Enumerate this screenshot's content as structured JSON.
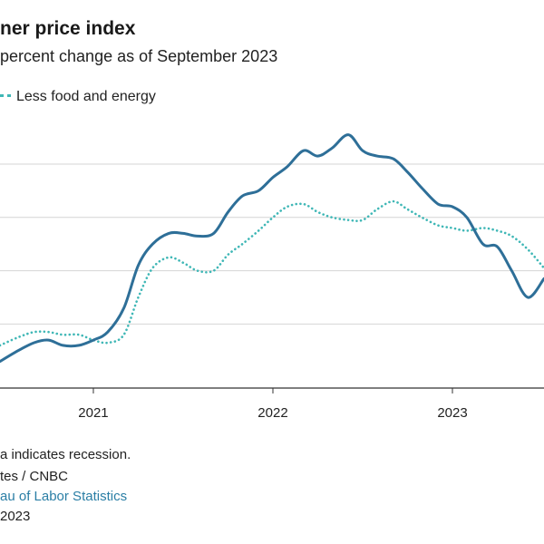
{
  "header": {
    "title": "ner price index",
    "subtitle": "percent change as of September 2023"
  },
  "legend": {
    "core_label": "Less food and energy"
  },
  "footer": {
    "recession_note": "a indicates recession.",
    "credit": "tes / CNBC",
    "source": "au of Labor Statistics",
    "date": "2023"
  },
  "colors": {
    "headline": "#2e6f98",
    "core": "#3fb7b6",
    "grid": "#d4d4d4",
    "axis": "#333333"
  },
  "chart_data": {
    "type": "line",
    "x_unit": "year",
    "xlim": [
      2020.48,
      2023.51
    ],
    "ylim": [
      -0.4,
      9.8
    ],
    "gridlines": [
      2,
      4,
      6,
      8
    ],
    "x_ticks": [
      {
        "value": 2021,
        "label": "2021"
      },
      {
        "value": 2022,
        "label": "2022"
      },
      {
        "value": 2023,
        "label": "2023"
      }
    ],
    "series": [
      {
        "key": "headline",
        "style": "solid",
        "x": [
          2020.48,
          2020.58,
          2020.67,
          2020.75,
          2020.83,
          2020.92,
          2021.0,
          2021.08,
          2021.17,
          2021.25,
          2021.33,
          2021.42,
          2021.5,
          2021.58,
          2021.67,
          2021.75,
          2021.83,
          2021.92,
          2022.0,
          2022.08,
          2022.17,
          2022.25,
          2022.33,
          2022.42,
          2022.5,
          2022.58,
          2022.67,
          2022.75,
          2022.83,
          2022.92,
          2023.0,
          2023.08,
          2023.17,
          2023.25,
          2023.33,
          2023.42,
          2023.51
        ],
        "y": [
          0.6,
          1.0,
          1.3,
          1.4,
          1.2,
          1.2,
          1.4,
          1.7,
          2.6,
          4.2,
          5.0,
          5.4,
          5.4,
          5.3,
          5.4,
          6.2,
          6.8,
          7.0,
          7.5,
          7.9,
          8.5,
          8.3,
          8.6,
          9.1,
          8.5,
          8.3,
          8.2,
          7.7,
          7.1,
          6.5,
          6.4,
          6.0,
          5.0,
          4.9,
          4.0,
          3.0,
          3.7
        ]
      },
      {
        "key": "core",
        "style": "dotted",
        "x": [
          2020.48,
          2020.58,
          2020.67,
          2020.75,
          2020.83,
          2020.92,
          2021.0,
          2021.08,
          2021.17,
          2021.25,
          2021.33,
          2021.42,
          2021.5,
          2021.58,
          2021.67,
          2021.75,
          2021.83,
          2021.92,
          2022.0,
          2022.08,
          2022.17,
          2022.25,
          2022.33,
          2022.42,
          2022.5,
          2022.58,
          2022.67,
          2022.75,
          2022.83,
          2022.92,
          2023.0,
          2023.08,
          2023.17,
          2023.25,
          2023.33,
          2023.42,
          2023.51
        ],
        "y": [
          1.2,
          1.5,
          1.7,
          1.7,
          1.6,
          1.6,
          1.4,
          1.3,
          1.6,
          3.0,
          4.1,
          4.5,
          4.3,
          4.0,
          4.0,
          4.6,
          5.0,
          5.5,
          6.0,
          6.4,
          6.5,
          6.2,
          6.0,
          5.9,
          5.9,
          6.3,
          6.6,
          6.3,
          6.0,
          5.7,
          5.6,
          5.5,
          5.6,
          5.5,
          5.3,
          4.8,
          4.1
        ]
      }
    ]
  }
}
